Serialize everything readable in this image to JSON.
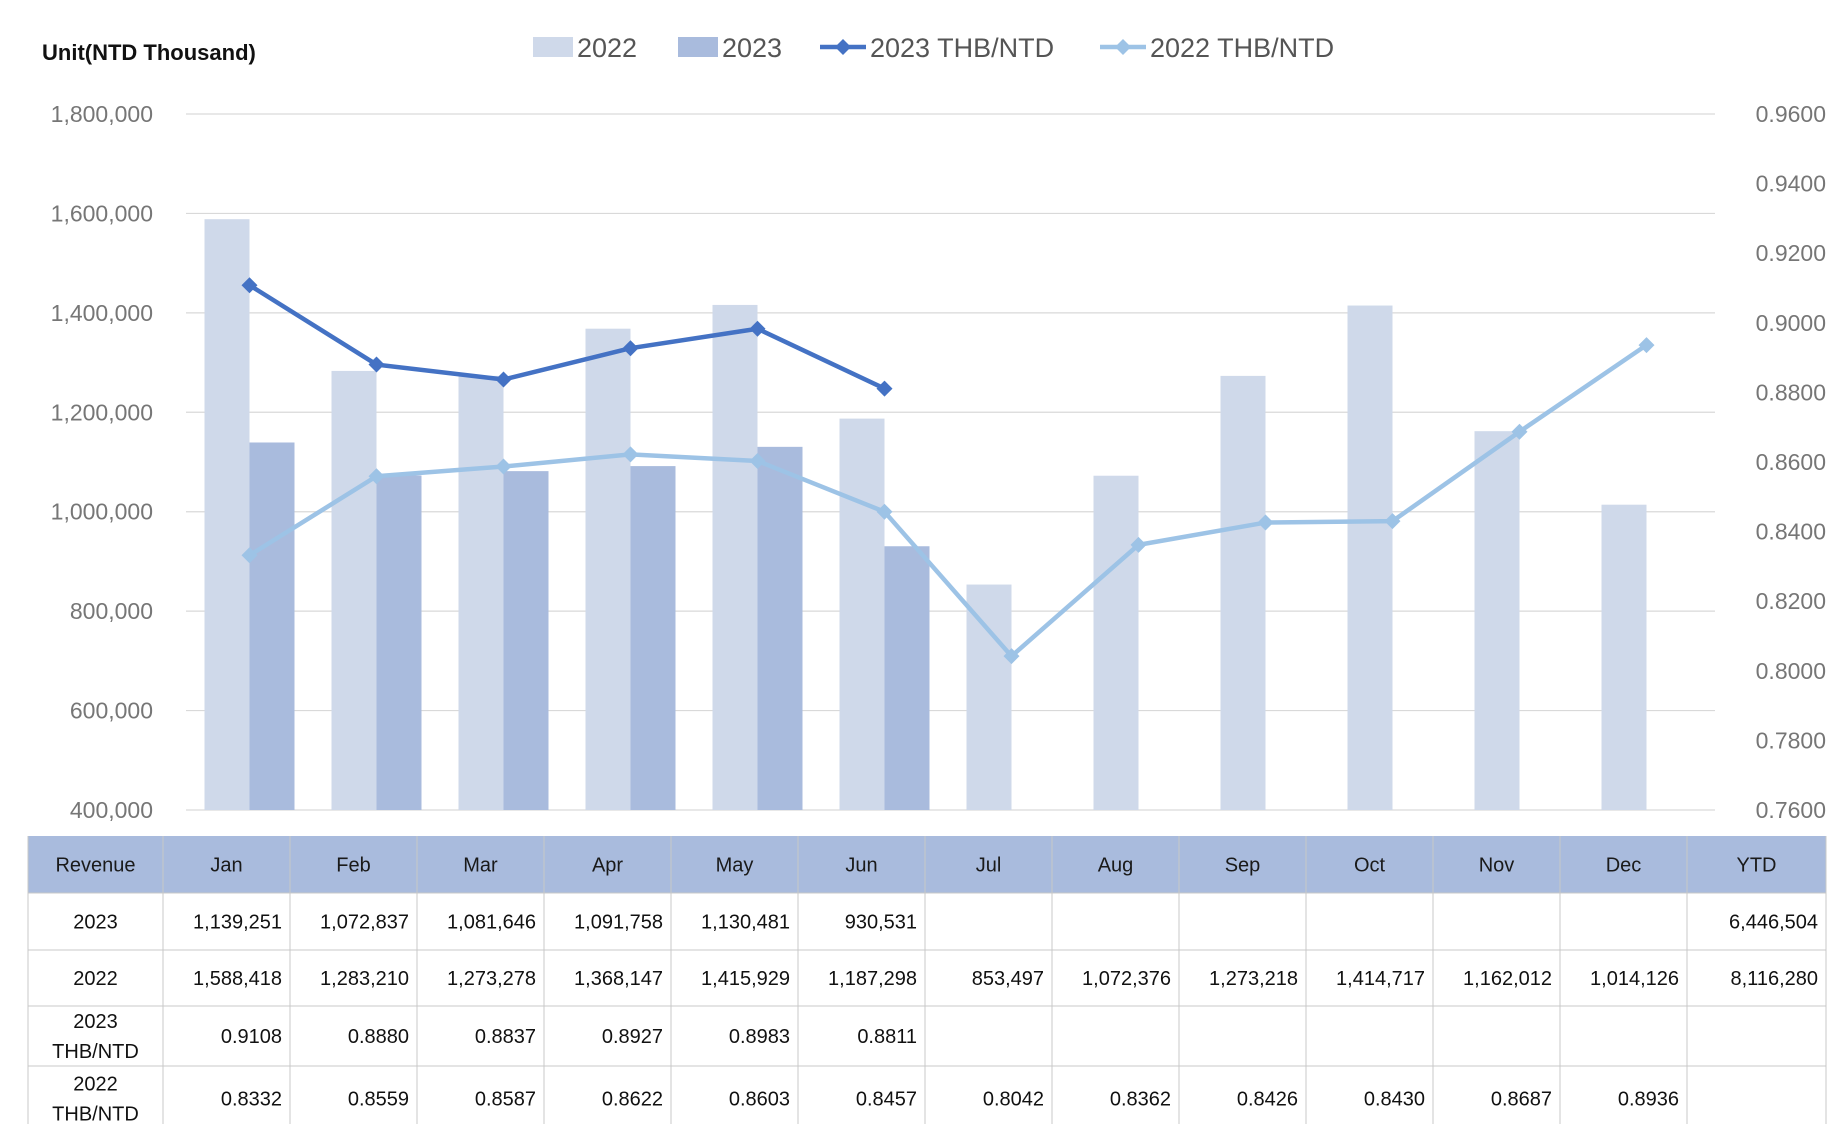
{
  "chart_data": {
    "type": "bar",
    "unit_label": "Unit(NTD  Thousand)",
    "categories": [
      "Jan",
      "Feb",
      "Mar",
      "Apr",
      "May",
      "Jun",
      "Jul",
      "Aug",
      "Sep",
      "Oct",
      "Nov",
      "Dec"
    ],
    "y_left": {
      "ylim": [
        400000,
        1800000
      ],
      "ticks": [
        "1,800,000",
        "1,600,000",
        "1,400,000",
        "1,200,000",
        "1,000,000",
        "800,000",
        "600,000",
        "400,000"
      ],
      "tick_values": [
        1800000,
        1600000,
        1400000,
        1200000,
        1000000,
        800000,
        600000,
        400000
      ]
    },
    "y_right": {
      "ylim": [
        0.76,
        0.96
      ],
      "ticks": [
        "0.9600",
        "0.9400",
        "0.9200",
        "0.9000",
        "0.8800",
        "0.8600",
        "0.8400",
        "0.8200",
        "0.8000",
        "0.7800",
        "0.7600"
      ],
      "tick_values": [
        0.96,
        0.94,
        0.92,
        0.9,
        0.88,
        0.86,
        0.84,
        0.82,
        0.8,
        0.78,
        0.76
      ]
    },
    "bar_series": [
      {
        "name": "2022",
        "color": "#cfd9ea",
        "values": [
          1588418,
          1283210,
          1273278,
          1368147,
          1415929,
          1187298,
          853497,
          1072376,
          1273218,
          1414717,
          1162012,
          1014126
        ]
      },
      {
        "name": "2023",
        "color": "#a9bbdd",
        "values": [
          1139251,
          1072837,
          1081646,
          1091758,
          1130481,
          930531,
          null,
          null,
          null,
          null,
          null,
          null
        ]
      }
    ],
    "line_series": [
      {
        "name": "2023 THB/NTD",
        "color": "#4472c4",
        "values": [
          0.9108,
          0.888,
          0.8837,
          0.8927,
          0.8983,
          0.8811,
          null,
          null,
          null,
          null,
          null,
          null
        ]
      },
      {
        "name": "2022 THB/NTD",
        "color": "#9dc3e6",
        "values": [
          0.8332,
          0.8559,
          0.8587,
          0.8622,
          0.8603,
          0.8457,
          0.8042,
          0.8362,
          0.8426,
          0.843,
          0.8687,
          0.8936
        ]
      }
    ],
    "legend": [
      "2022",
      "2023",
      "2023 THB/NTD",
      "2022 THB/NTD"
    ],
    "legend_placement": "top-center",
    "grid": true
  },
  "table": {
    "header_color": "#a9bbdd",
    "header": [
      "Revenue",
      "Jan",
      "Feb",
      "Mar",
      "Apr",
      "May",
      "Jun",
      "Jul",
      "Aug",
      "Sep",
      "Oct",
      "Nov",
      "Dec",
      "YTD"
    ],
    "rows": [
      {
        "label": [
          "2023"
        ],
        "cells": [
          "1,139,251",
          "1,072,837",
          "1,081,646",
          "1,091,758",
          "1,130,481",
          "930,531",
          "",
          "",
          "",
          "",
          "",
          "",
          "6,446,504"
        ]
      },
      {
        "label": [
          "2022"
        ],
        "cells": [
          "1,588,418",
          "1,283,210",
          "1,273,278",
          "1,368,147",
          "1,415,929",
          "1,187,298",
          "853,497",
          "1,072,376",
          "1,273,218",
          "1,414,717",
          "1,162,012",
          "1,014,126",
          "8,116,280"
        ]
      },
      {
        "label": [
          "2023",
          "THB/NTD"
        ],
        "cells": [
          "0.9108",
          "0.8880",
          "0.8837",
          "0.8927",
          "0.8983",
          "0.8811",
          "",
          "",
          "",
          "",
          "",
          "",
          ""
        ]
      },
      {
        "label": [
          "2022",
          "THB/NTD"
        ],
        "cells": [
          "0.8332",
          "0.8559",
          "0.8587",
          "0.8622",
          "0.8603",
          "0.8457",
          "0.8042",
          "0.8362",
          "0.8426",
          "0.8430",
          "0.8687",
          "0.8936",
          ""
        ]
      }
    ]
  }
}
